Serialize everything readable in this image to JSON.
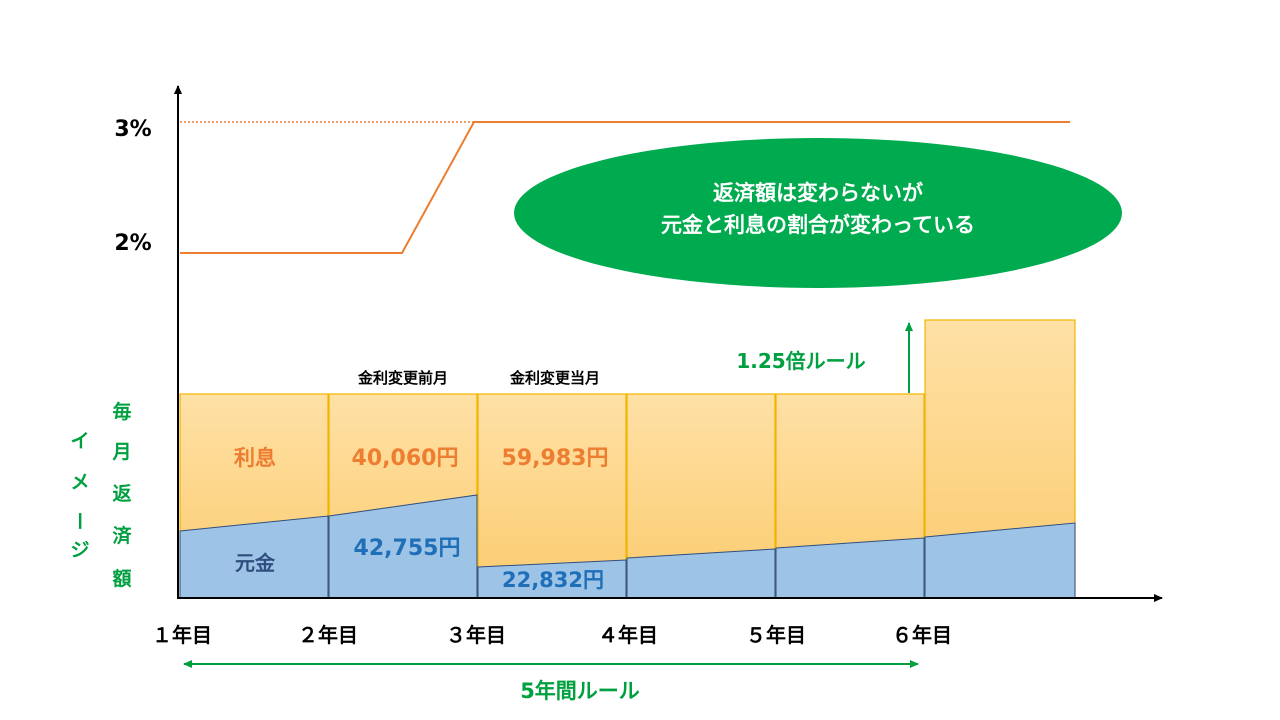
{
  "rate_axis": {
    "labels": [
      "3%",
      "2%"
    ]
  },
  "year_labels": [
    "１年目",
    "２年目",
    "３年目",
    "４年目",
    "５年目",
    "６年目"
  ],
  "y_axis_label_col1": "毎月返済額",
  "y_axis_label_col2": "イメージ",
  "month_labels": {
    "before": "金利変更前月",
    "current": "金利変更当月"
  },
  "segment_labels": {
    "interest": "利息",
    "principal": "元金"
  },
  "amounts": {
    "interest_before": "40,060円",
    "principal_before": "42,755円",
    "interest_current": "59,983円",
    "principal_current": "22,832円"
  },
  "callout": {
    "line1": "返済額は変わらないが",
    "line2": "元金と利息の割合が変わっている"
  },
  "rule_125": "1.25倍ルール",
  "rule_5yr": "5年間ルール",
  "colors": {
    "interest_top": "#FFE1A6",
    "interest_bottom": "#FBCB6E",
    "interest_border": "#F2B300",
    "principal_fill": "#9DC3E6",
    "principal_border": "#2F4E7F",
    "rate_line": "#ED7D31",
    "green": "#00A040",
    "interest_text": "#ED7D31",
    "principal_text": "#1F6FB8",
    "principal_label": "#2F4E7F"
  }
}
